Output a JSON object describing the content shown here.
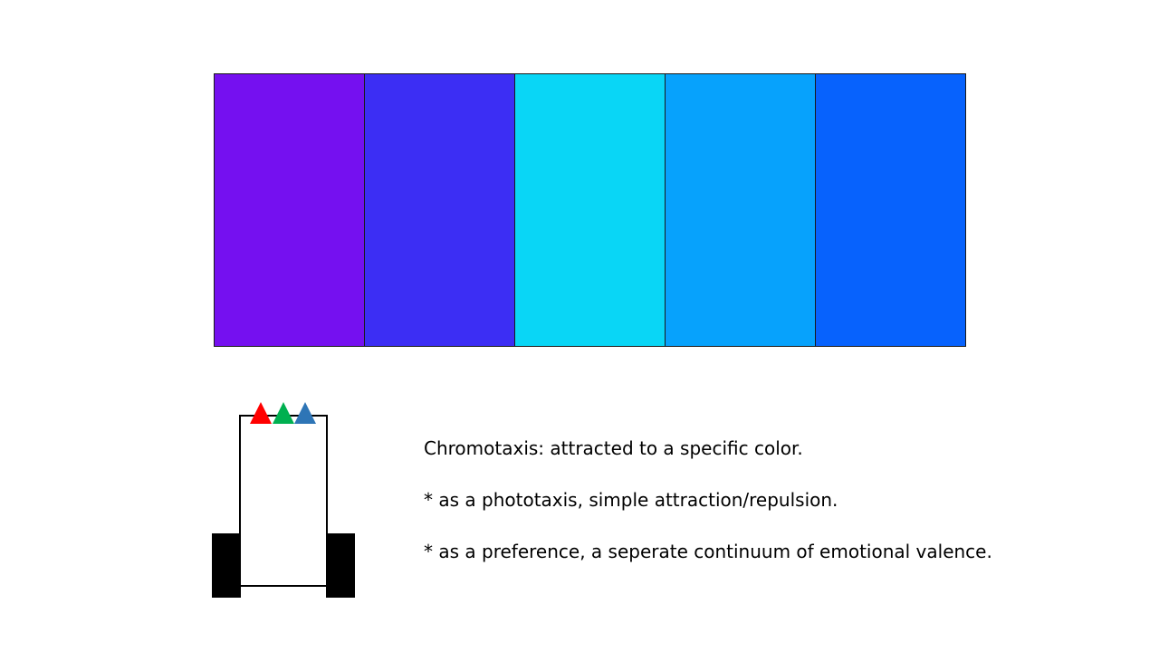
{
  "swatches": [
    {
      "color": "#7510F0"
    },
    {
      "color": "#3C2EF4"
    },
    {
      "color": "#09D6F6"
    },
    {
      "color": "#07A2FC"
    },
    {
      "color": "#0762FD"
    }
  ],
  "robot": {
    "body_color": "#FFFFFF",
    "outline_color": "#000000",
    "wheel_color": "#000000",
    "sensor_colors": [
      "#FF0000",
      "#00B050",
      "#2E75B6"
    ]
  },
  "notes": {
    "line1": "Chromotaxis: attracted to a specific color.",
    "line2": "* as a phototaxis, simple attraction/repulsion.",
    "line3": "* as a preference, a seperate continuum of emotional valence."
  }
}
